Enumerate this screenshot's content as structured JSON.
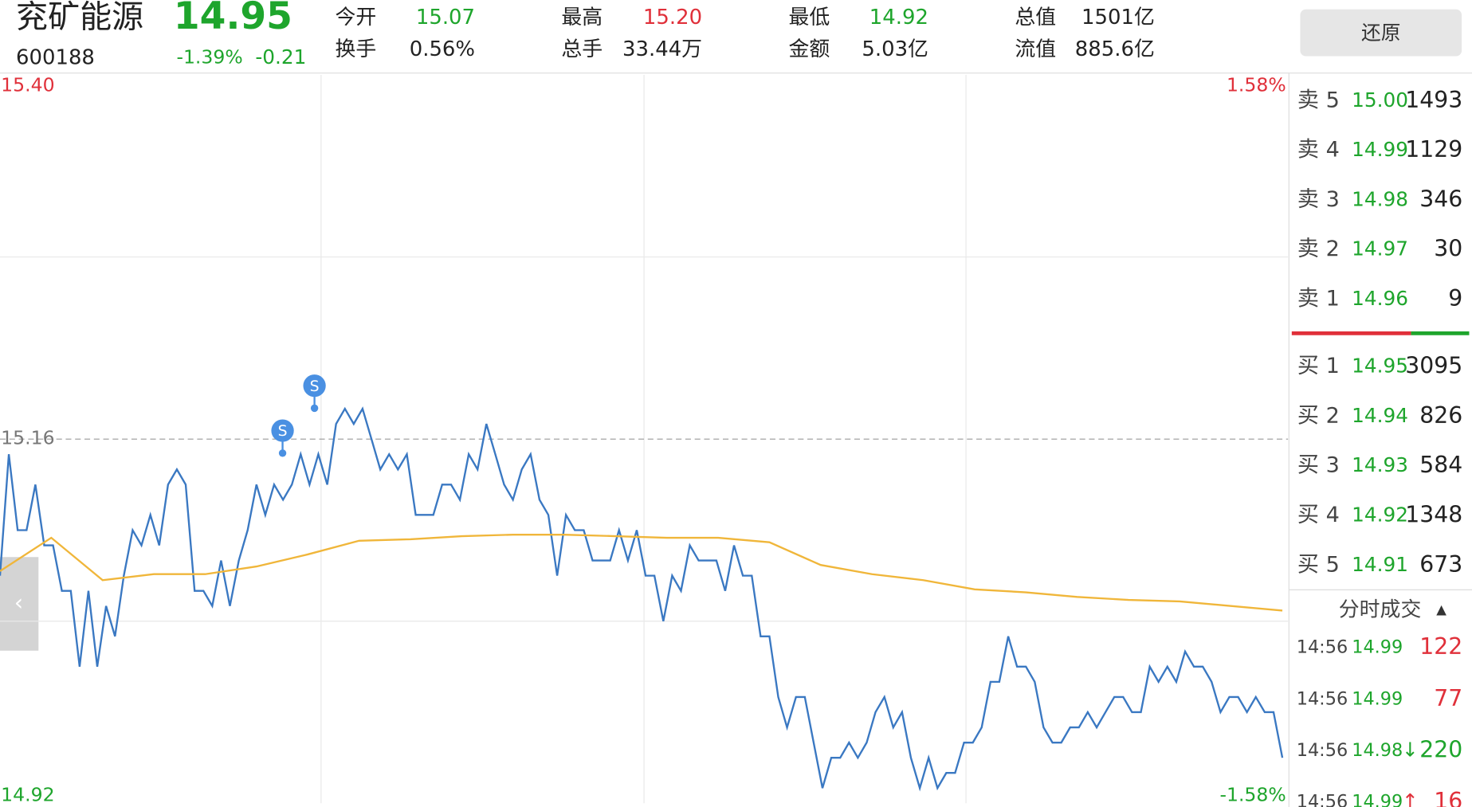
{
  "header": {
    "name": "兖矿能源",
    "code": "600188",
    "price": "14.95",
    "change_pct": "-1.39%",
    "change": "-0.21",
    "stats": [
      {
        "label": "今开",
        "value": "15.07",
        "color": "#1ea52c"
      },
      {
        "label": "换手",
        "value": "0.56%",
        "color": "#222"
      },
      {
        "label": "最高",
        "value": "15.20",
        "color": "#e0303a"
      },
      {
        "label": "总手",
        "value": "33.44万",
        "color": "#222"
      },
      {
        "label": "最低",
        "value": "14.92",
        "color": "#1ea52c"
      },
      {
        "label": "金额",
        "value": "5.03亿",
        "color": "#222"
      },
      {
        "label": "总值",
        "value": "1501亿",
        "color": "#222"
      },
      {
        "label": "流值",
        "value": "885.6亿",
        "color": "#222"
      }
    ],
    "restore_button": "还原"
  },
  "chart_data": {
    "type": "line",
    "ylim": [
      14.92,
      15.4
    ],
    "yticks": [
      14.92,
      15.16,
      {
        "value": 15.4,
        "label": "15.40"
      }
    ],
    "y2lim": [
      -1.58,
      1.58
    ],
    "y2ticks": [
      {
        "value": -1.58,
        "label": "-1.58%"
      },
      {
        "value": 1.58,
        "label": "1.58%"
      }
    ],
    "markers": [
      {
        "label": "S"
      },
      {
        "label": "S"
      }
    ],
    "series": [
      {
        "color": "#3a78c2",
        "values": [
          15.07,
          15.15,
          15.1,
          15.1,
          15.13,
          15.09,
          15.09,
          15.06,
          15.06,
          15.01,
          15.06,
          15.01,
          15.05,
          15.03,
          15.07,
          15.1,
          15.09,
          15.11,
          15.09,
          15.13,
          15.14,
          15.13,
          15.06,
          15.06,
          15.05,
          15.08,
          15.05,
          15.08,
          15.1,
          15.13,
          15.11,
          15.13,
          15.12,
          15.13,
          15.15,
          15.13,
          15.15,
          15.13,
          15.17,
          15.18,
          15.17,
          15.18,
          15.16,
          15.14,
          15.15,
          15.14,
          15.15,
          15.11,
          15.11,
          15.11,
          15.13,
          15.13,
          15.12,
          15.15,
          15.14,
          15.17,
          15.15,
          15.13,
          15.12,
          15.14,
          15.15,
          15.12,
          15.11,
          15.07,
          15.11,
          15.1,
          15.1,
          15.08,
          15.08,
          15.08,
          15.1,
          15.08,
          15.1,
          15.07,
          15.07,
          15.04,
          15.07,
          15.06,
          15.09,
          15.08,
          15.08,
          15.08,
          15.06,
          15.09,
          15.07,
          15.07,
          15.03,
          15.03,
          14.99,
          14.97,
          14.99,
          14.99,
          14.96,
          14.93,
          14.95,
          14.95,
          14.96,
          14.95,
          14.96,
          14.98,
          14.99,
          14.97,
          14.98,
          14.95,
          14.93,
          14.95,
          14.93,
          14.94,
          14.94,
          14.96,
          14.96,
          14.97,
          15.0,
          15.0,
          15.03,
          15.01,
          15.01,
          15.0,
          14.97,
          14.96,
          14.96,
          14.97,
          14.97,
          14.98,
          14.97,
          14.98,
          14.99,
          14.99,
          14.98,
          14.98,
          15.01,
          15.0,
          15.01,
          15.0,
          15.02,
          15.01,
          15.01,
          15.0,
          14.98,
          14.99,
          14.99,
          14.98,
          14.99,
          14.98,
          14.98,
          14.95
        ]
      },
      {
        "color": "#f0b63a",
        "values": [
          15.073,
          15.095,
          15.067,
          15.071,
          15.071,
          15.076,
          15.084,
          15.093,
          15.094,
          15.096,
          15.097,
          15.097,
          15.096,
          15.095,
          15.095,
          15.092,
          15.077,
          15.071,
          15.067,
          15.061,
          15.059,
          15.056,
          15.054,
          15.053,
          15.05,
          15.047
        ]
      }
    ]
  },
  "order_book": {
    "sell": [
      {
        "label": "卖 5",
        "price": "15.00",
        "volume": "1493"
      },
      {
        "label": "卖 4",
        "price": "14.99",
        "volume": "1129"
      },
      {
        "label": "卖 3",
        "price": "14.98",
        "volume": "346"
      },
      {
        "label": "卖 2",
        "price": "14.97",
        "volume": "30"
      },
      {
        "label": "卖 1",
        "price": "14.96",
        "volume": "9"
      }
    ],
    "buy": [
      {
        "label": "买 1",
        "price": "14.95",
        "volume": "3095"
      },
      {
        "label": "买 2",
        "price": "14.94",
        "volume": "826"
      },
      {
        "label": "买 3",
        "price": "14.93",
        "volume": "584"
      },
      {
        "label": "买 4",
        "price": "14.92",
        "volume": "1348"
      },
      {
        "label": "买 5",
        "price": "14.91",
        "volume": "673"
      }
    ]
  },
  "trades": {
    "title": "分时成交",
    "rows": [
      {
        "time": "14:56",
        "price": "14.99",
        "volume": "122",
        "color": "#e0303a"
      },
      {
        "time": "14:56",
        "price": "14.99",
        "volume": "77",
        "color": "#e0303a"
      },
      {
        "time": "14:56",
        "price": "14.98",
        "direction": "↓",
        "volume": "220",
        "color": "#1ea52c"
      },
      {
        "time": "14:56",
        "price": "14.99",
        "direction": "↑",
        "volume": "16",
        "color": "#e0303a"
      }
    ]
  }
}
